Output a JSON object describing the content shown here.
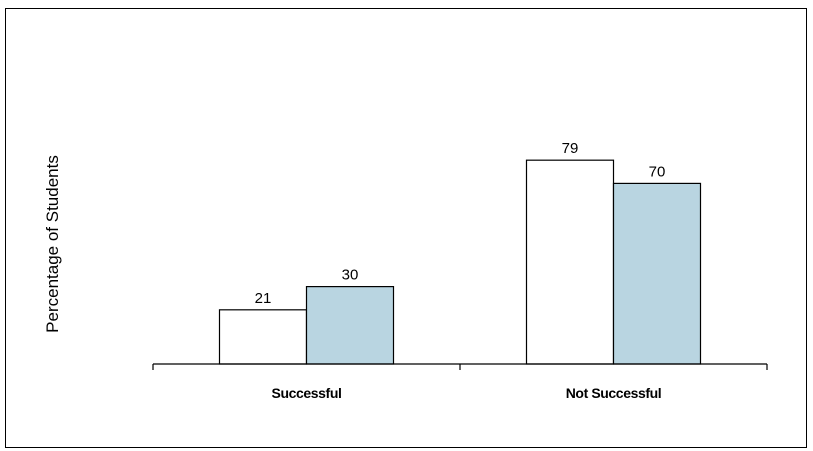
{
  "chart_data": {
    "type": "bar",
    "title": "",
    "xlabel": "",
    "ylabel": "Percentage of Students",
    "categories": [
      "Successful",
      "Not Successful"
    ],
    "series": [
      {
        "values": [
          21,
          79
        ],
        "color": "#ffffff"
      },
      {
        "values": [
          30,
          70
        ],
        "color": "#b9d5e1"
      }
    ],
    "ylim": [
      0,
      100
    ],
    "grid": false,
    "legend": "none",
    "data_labels": true
  }
}
